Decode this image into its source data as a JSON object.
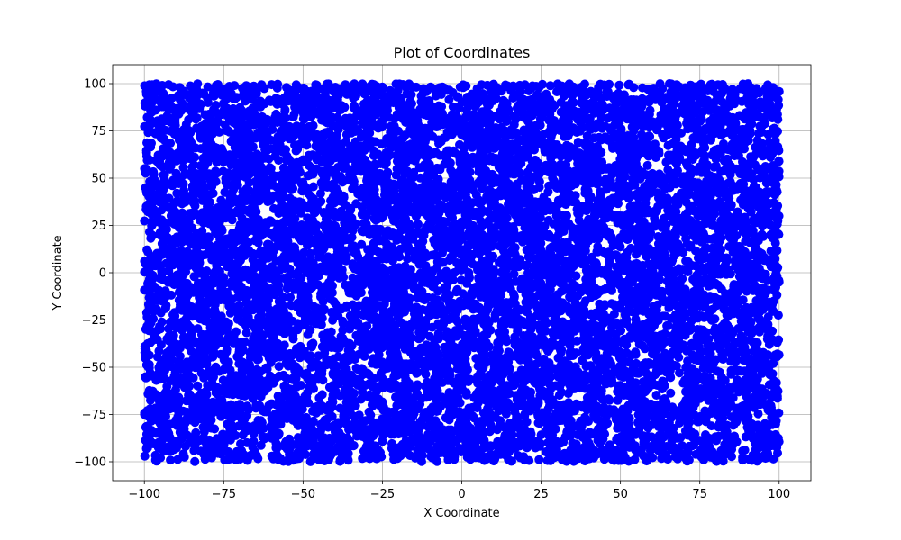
{
  "chart_data": {
    "type": "scatter",
    "title": "Plot of Coordinates",
    "xlabel": "X Coordinate",
    "ylabel": "Y Coordinate",
    "xlim": [
      -110,
      110
    ],
    "ylim": [
      -110,
      110
    ],
    "xticks": [
      -100,
      -75,
      -50,
      -25,
      0,
      25,
      50,
      75,
      100
    ],
    "yticks": [
      -100,
      -75,
      -50,
      -25,
      0,
      25,
      50,
      75,
      100
    ],
    "xtick_labels": [
      "−100",
      "−75",
      "−50",
      "−25",
      "0",
      "25",
      "50",
      "75",
      "100"
    ],
    "ytick_labels": [
      "−100",
      "−75",
      "−50",
      "−25",
      "0",
      "25",
      "50",
      "75",
      "100"
    ],
    "grid": true,
    "point_color": "#0000ff",
    "series": [
      {
        "distribution": "uniform",
        "x_range": [
          -100,
          100
        ],
        "y_range": [
          -100,
          100
        ],
        "approx_point_count": 10000
      }
    ]
  }
}
